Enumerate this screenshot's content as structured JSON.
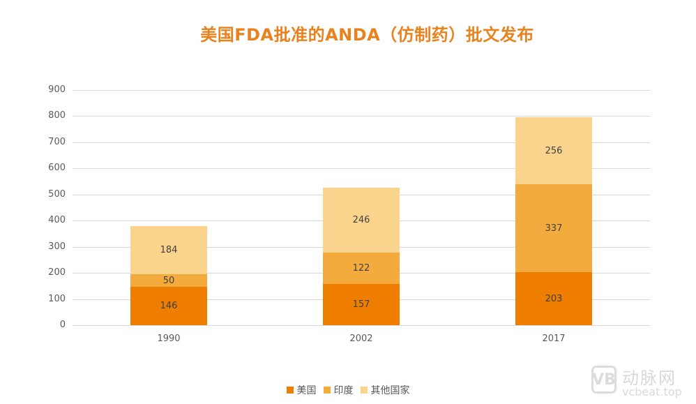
{
  "chart_data": {
    "type": "bar",
    "stacked": true,
    "title": "美国FDA批准的ANDA（仿制药）批文发布",
    "xlabel": "",
    "ylabel": "",
    "ylim": [
      0,
      900
    ],
    "yticks": [
      0,
      100,
      200,
      300,
      400,
      500,
      600,
      700,
      800,
      900
    ],
    "grid": true,
    "legend_position": "bottom",
    "categories": [
      "1990",
      "2002",
      "2017"
    ],
    "series": [
      {
        "name": "美国",
        "color": "#EE7D00",
        "values": [
          146,
          157,
          203
        ]
      },
      {
        "name": "印度",
        "color": "#F4AB3E",
        "values": [
          50,
          122,
          337
        ]
      },
      {
        "name": "其他国家",
        "color": "#FAD48C",
        "values": [
          184,
          246,
          256
        ]
      }
    ],
    "totals": [
      380,
      525,
      796
    ]
  },
  "title_color": "#E8821E",
  "watermark": {
    "logo": "VB",
    "name": "动脉网",
    "url": "vcbeat.top"
  }
}
